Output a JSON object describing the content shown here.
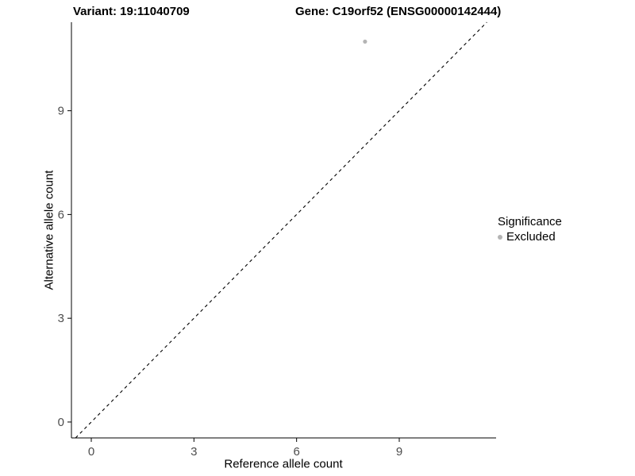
{
  "header": {
    "variant_title": "Variant: 19:11040709",
    "gene_title": "Gene: C19orf52 (ENSG00000142444)"
  },
  "chart_data": {
    "type": "scatter",
    "title": "",
    "xlabel": "Reference allele count",
    "ylabel": "Alternative allele count",
    "xlim": [
      -0.58,
      11.83
    ],
    "ylim": [
      -0.46,
      11.56
    ],
    "xticks": [
      0,
      3,
      6,
      9
    ],
    "yticks": [
      0,
      3,
      6,
      9
    ],
    "grid": false,
    "points": [
      {
        "x": 8,
        "y": 11,
        "significance": "Excluded"
      }
    ],
    "identity_line": {
      "slope": 1,
      "intercept": 0,
      "style": "dashed",
      "color": "#000000"
    },
    "point_color": "#b4b4b4",
    "axis_color": "#000000",
    "tick_label_color": "#4d4d4d",
    "legend": {
      "title": "Significance",
      "position": "right",
      "entries": [
        {
          "label": "Excluded",
          "color": "#b4b4b4"
        }
      ]
    }
  }
}
